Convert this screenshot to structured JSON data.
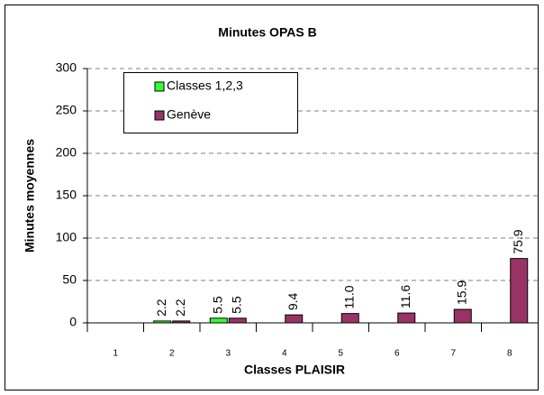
{
  "chart_data": {
    "type": "bar",
    "title": "Minutes OPAS B",
    "y_label": "Minutes moyennes",
    "x_label": "Classes PLAISIR",
    "categories": [
      "1",
      "2",
      "3",
      "4",
      "5",
      "6",
      "7",
      "8"
    ],
    "series": [
      {
        "name": "Classes 1,2,3",
        "color": "#33ff33",
        "values": [
          null,
          2.2,
          5.5,
          null,
          null,
          null,
          null,
          null
        ],
        "value_labels": [
          null,
          "2.2",
          "5.5",
          null,
          null,
          null,
          null,
          null
        ]
      },
      {
        "name": "Genève",
        "color": "#993366",
        "values": [
          null,
          2.2,
          5.5,
          9.4,
          11.0,
          11.6,
          15.9,
          75.9
        ],
        "value_labels": [
          null,
          "2.2",
          "5.5",
          "9.4",
          "11.0",
          "11.6",
          "15.9",
          "75.9"
        ]
      }
    ],
    "ylim": [
      0,
      300
    ],
    "yticks": [
      0,
      50,
      100,
      150,
      200,
      250,
      300
    ],
    "grid": true,
    "legend": "top-left"
  }
}
